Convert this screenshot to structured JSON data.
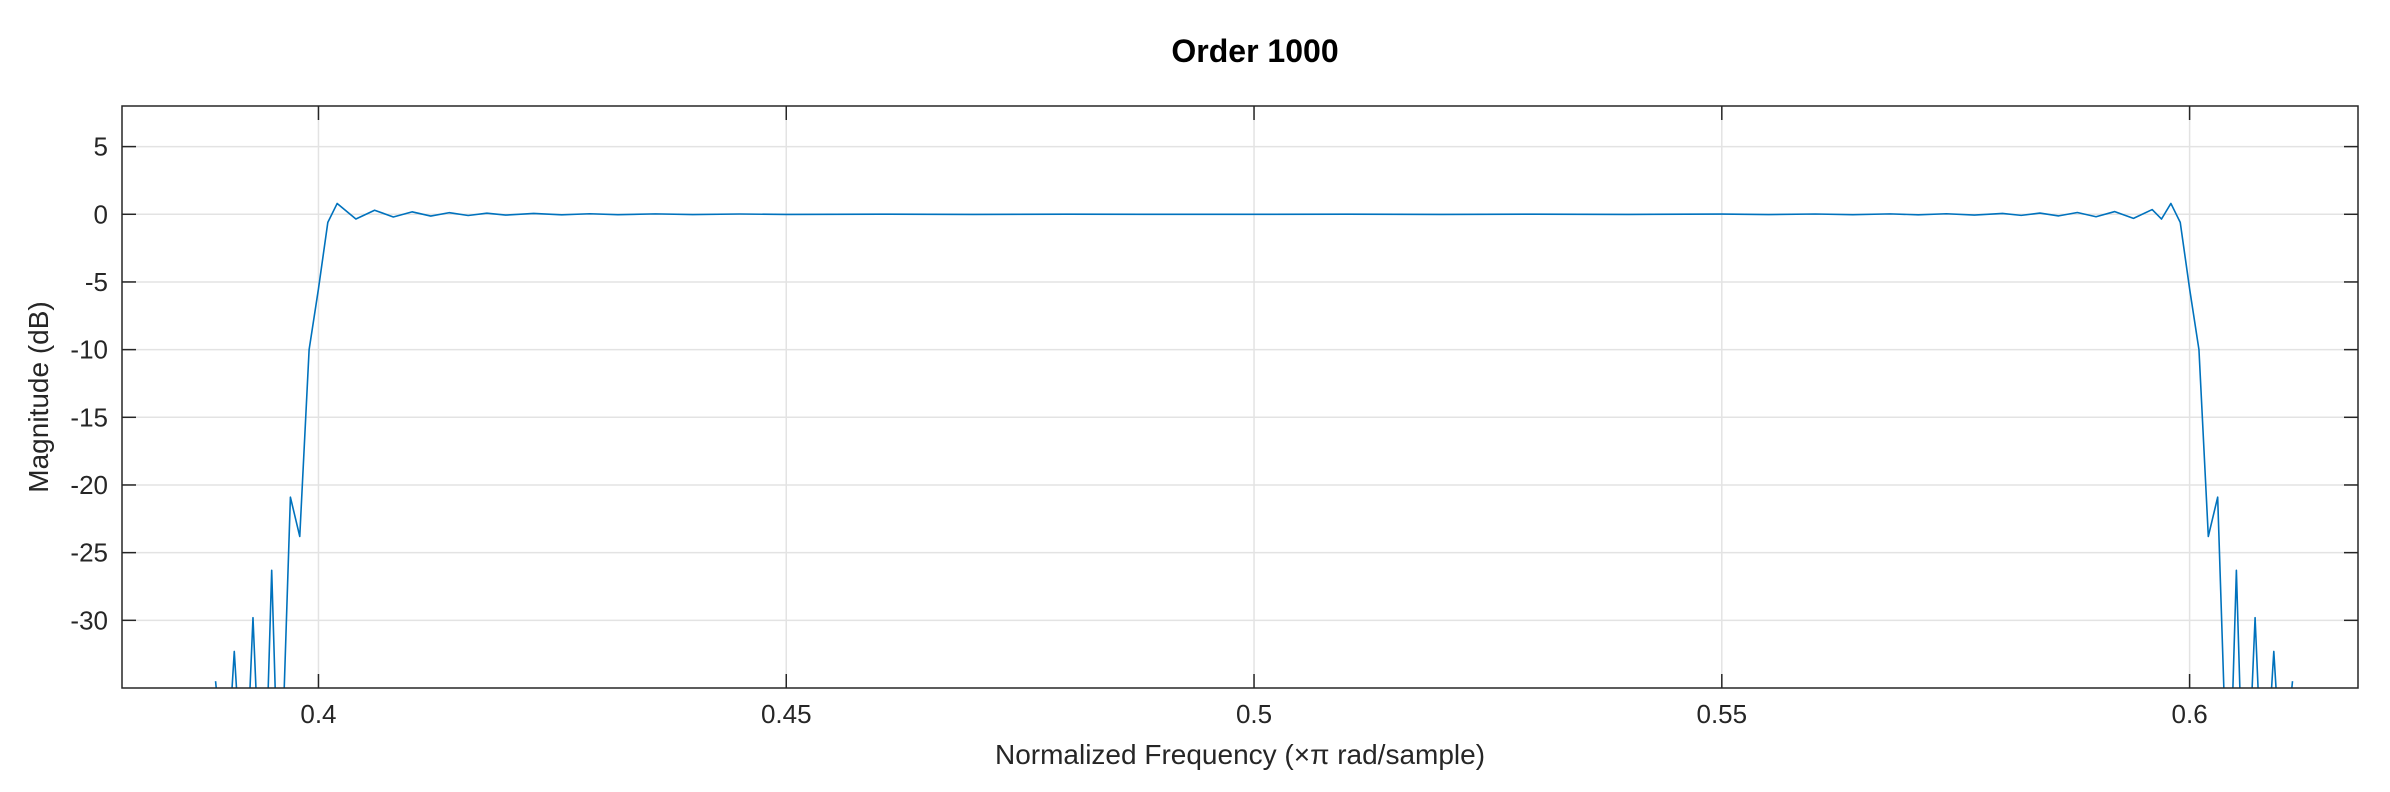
{
  "chart_data": {
    "type": "line",
    "title": "Order 1000",
    "xlabel": "Normalized Frequency  (×π rad/sample)",
    "ylabel": "Magnitude (dB)",
    "xlim": [
      0.379,
      0.618
    ],
    "ylim": [
      -35.0,
      8.0
    ],
    "xticks": [
      0.4,
      0.45,
      0.5,
      0.55,
      0.6
    ],
    "xtick_labels": [
      "0.4",
      "0.45",
      "0.5",
      "0.55",
      "0.6"
    ],
    "yticks": [
      5,
      0,
      -5,
      -10,
      -15,
      -20,
      -25,
      -30
    ],
    "ytick_labels": [
      "5",
      "0",
      "-5",
      "-10",
      "-15",
      "-20",
      "-25",
      "-30"
    ],
    "grid": true,
    "series": [
      {
        "color": "#0072bd",
        "points": [
          [
            0.389,
            -34.5
          ],
          [
            0.3895,
            -38.0
          ],
          [
            0.3905,
            -38.0
          ],
          [
            0.391,
            -32.3
          ],
          [
            0.3915,
            -38.0
          ],
          [
            0.3925,
            -38.0
          ],
          [
            0.393,
            -29.8
          ],
          [
            0.3935,
            -38.0
          ],
          [
            0.3945,
            -38.0
          ],
          [
            0.395,
            -26.3
          ],
          [
            0.3955,
            -38.0
          ],
          [
            0.3962,
            -38.0
          ],
          [
            0.397,
            -20.9
          ],
          [
            0.398,
            -23.8
          ],
          [
            0.399,
            -10.0
          ],
          [
            0.4,
            -5.5
          ],
          [
            0.401,
            -0.6
          ],
          [
            0.402,
            0.8
          ],
          [
            0.404,
            -0.35
          ],
          [
            0.406,
            0.3
          ],
          [
            0.408,
            -0.2
          ],
          [
            0.41,
            0.18
          ],
          [
            0.412,
            -0.13
          ],
          [
            0.414,
            0.12
          ],
          [
            0.416,
            -0.09
          ],
          [
            0.418,
            0.08
          ],
          [
            0.42,
            -0.06
          ],
          [
            0.423,
            0.06
          ],
          [
            0.426,
            -0.04
          ],
          [
            0.429,
            0.04
          ],
          [
            0.432,
            -0.03
          ],
          [
            0.436,
            0.03
          ],
          [
            0.44,
            -0.02
          ],
          [
            0.445,
            0.02
          ],
          [
            0.45,
            -0.015
          ],
          [
            0.46,
            0.01
          ],
          [
            0.47,
            -0.01
          ],
          [
            0.48,
            0.01
          ],
          [
            0.49,
            -0.005
          ],
          [
            0.5,
            0.0
          ],
          [
            0.51,
            0.005
          ],
          [
            0.52,
            -0.01
          ],
          [
            0.53,
            0.01
          ],
          [
            0.54,
            -0.01
          ],
          [
            0.55,
            0.015
          ],
          [
            0.555,
            -0.02
          ],
          [
            0.56,
            0.02
          ],
          [
            0.564,
            -0.03
          ],
          [
            0.568,
            0.03
          ],
          [
            0.571,
            -0.04
          ],
          [
            0.574,
            0.04
          ],
          [
            0.577,
            -0.06
          ],
          [
            0.58,
            0.06
          ],
          [
            0.582,
            -0.08
          ],
          [
            0.584,
            0.09
          ],
          [
            0.586,
            -0.12
          ],
          [
            0.588,
            0.13
          ],
          [
            0.59,
            -0.18
          ],
          [
            0.592,
            0.2
          ],
          [
            0.594,
            -0.3
          ],
          [
            0.596,
            0.35
          ],
          [
            0.597,
            -0.35
          ],
          [
            0.598,
            0.8
          ],
          [
            0.599,
            -0.6
          ],
          [
            0.6,
            -5.5
          ],
          [
            0.601,
            -10.0
          ],
          [
            0.602,
            -23.8
          ],
          [
            0.603,
            -20.9
          ],
          [
            0.6038,
            -38.0
          ],
          [
            0.6045,
            -38.0
          ],
          [
            0.605,
            -26.3
          ],
          [
            0.6055,
            -38.0
          ],
          [
            0.6065,
            -38.0
          ],
          [
            0.607,
            -29.8
          ],
          [
            0.6075,
            -38.0
          ],
          [
            0.6085,
            -38.0
          ],
          [
            0.609,
            -32.3
          ],
          [
            0.6095,
            -38.0
          ],
          [
            0.6105,
            -38.0
          ],
          [
            0.611,
            -34.5
          ]
        ]
      }
    ]
  }
}
